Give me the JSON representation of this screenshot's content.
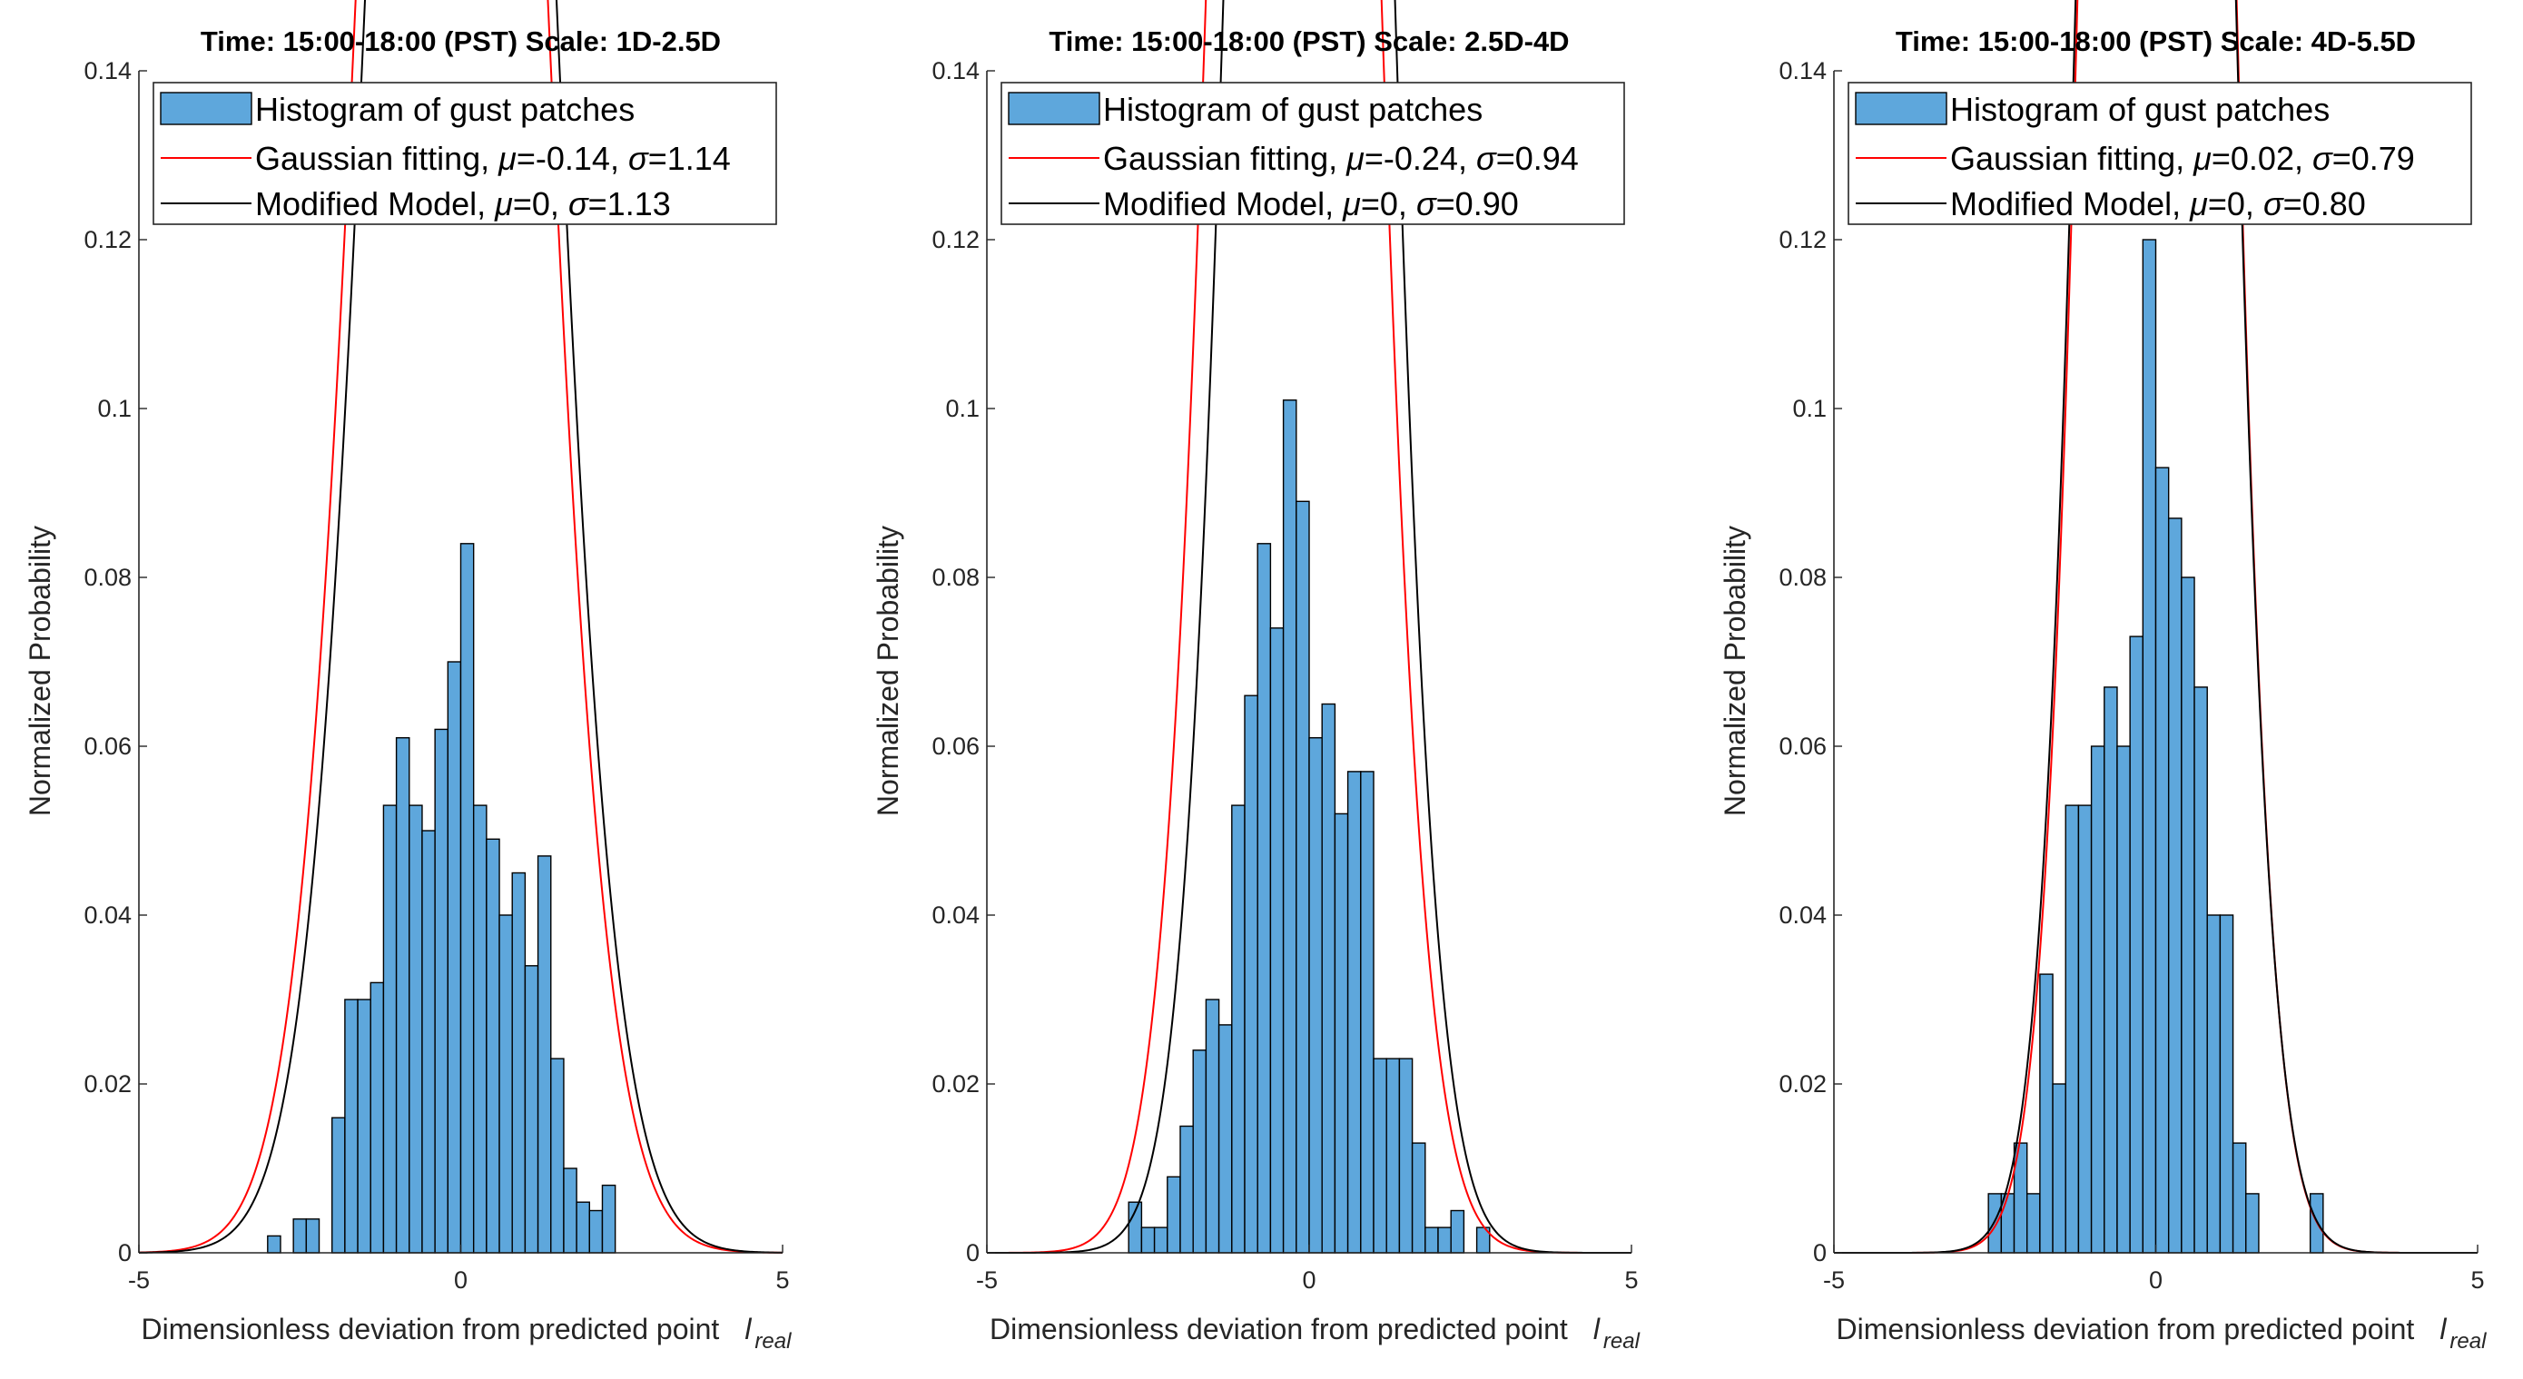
{
  "colors": {
    "bar_fill": "#5ea7dc",
    "bar_edge": "#000000",
    "gaussian": "#ff0000",
    "model": "#000000",
    "axis": "#262626"
  },
  "chart_data": [
    {
      "type": "bar",
      "title": "Time: 15:00-18:00 (PST)  Scale: 1D-2.5D",
      "xlabel": "Dimensionless deviation from predicted point",
      "xlabel_symbol": "l",
      "xlabel_subscript": "real",
      "ylabel": "Normalized Probability",
      "xlim": [
        -5,
        5
      ],
      "ylim": [
        0,
        0.14
      ],
      "xticks": [
        -5,
        0,
        5
      ],
      "xtick_labels": [
        "-5",
        "0",
        "5"
      ],
      "yticks": [
        0,
        0.02,
        0.04,
        0.06,
        0.08,
        0.1,
        0.12,
        0.14
      ],
      "ytick_labels": [
        "0",
        "0.02",
        "0.04",
        "0.06",
        "0.08",
        "0.1",
        "0.12",
        "0.14"
      ],
      "bin_width": 0.2,
      "bin_starts": [
        -3.0,
        -2.8,
        -2.6,
        -2.4,
        -2.2,
        -2.0,
        -1.8,
        -1.6,
        -1.4,
        -1.2,
        -1.0,
        -0.8,
        -0.6,
        -0.4,
        -0.2,
        0.0,
        0.2,
        0.4,
        0.6,
        0.8,
        1.0,
        1.2,
        1.4,
        1.6,
        1.8,
        2.0,
        2.2,
        2.4
      ],
      "bin_values": [
        0.002,
        0.0,
        0.004,
        0.004,
        0.0,
        0.016,
        0.03,
        0.03,
        0.032,
        0.053,
        0.061,
        0.053,
        0.05,
        0.062,
        0.07,
        0.084,
        0.053,
        0.049,
        0.04,
        0.045,
        0.034,
        0.047,
        0.023,
        0.01,
        0.006,
        0.005,
        0.008,
        0.0
      ],
      "legend": {
        "position": "top",
        "histogram_label": "Histogram of gust patches",
        "gaussian_prefix": "Gaussian fitting, ",
        "model_prefix": "Modified Model, ",
        "mu_symbol": "μ",
        "sigma_symbol": "σ",
        "gaussian_mu_text": "=-0.14, ",
        "gaussian_sigma_text": "=1.14",
        "model_mu_text": "=0, ",
        "model_sigma_text": "=1.13"
      },
      "gaussian_fit": {
        "mu": -0.14,
        "sigma": 1.14
      },
      "modified_model": {
        "mu": 0,
        "sigma": 1.13
      }
    },
    {
      "type": "bar",
      "title": "Time: 15:00-18:00 (PST)    Scale: 2.5D-4D",
      "xlabel": "Dimensionless deviation from predicted point",
      "xlabel_symbol": "l",
      "xlabel_subscript": "real",
      "ylabel": "Normalized Probability",
      "xlim": [
        -5,
        5
      ],
      "ylim": [
        0,
        0.14
      ],
      "xticks": [
        -5,
        0,
        5
      ],
      "xtick_labels": [
        "-5",
        "0",
        "5"
      ],
      "yticks": [
        0,
        0.02,
        0.04,
        0.06,
        0.08,
        0.1,
        0.12,
        0.14
      ],
      "ytick_labels": [
        "0",
        "0.02",
        "0.04",
        "0.06",
        "0.08",
        "0.1",
        "0.12",
        "0.14"
      ],
      "bin_width": 0.2,
      "bin_starts": [
        -2.8,
        -2.6,
        -2.4,
        -2.2,
        -2.0,
        -1.8,
        -1.6,
        -1.4,
        -1.2,
        -1.0,
        -0.8,
        -0.6,
        -0.4,
        -0.2,
        0.0,
        0.2,
        0.4,
        0.6,
        0.8,
        1.0,
        1.2,
        1.4,
        1.6,
        1.8,
        2.0,
        2.2,
        2.4,
        2.6,
        2.8
      ],
      "bin_values": [
        0.006,
        0.003,
        0.003,
        0.009,
        0.015,
        0.024,
        0.03,
        0.027,
        0.053,
        0.066,
        0.084,
        0.074,
        0.101,
        0.089,
        0.061,
        0.065,
        0.052,
        0.057,
        0.057,
        0.023,
        0.023,
        0.023,
        0.013,
        0.003,
        0.003,
        0.005,
        0.0,
        0.003,
        0.0
      ],
      "legend": {
        "position": "top",
        "histogram_label": "Histogram of gust patches",
        "gaussian_prefix": "Gaussian fitting, ",
        "model_prefix": "Modified Model, ",
        "mu_symbol": "μ",
        "sigma_symbol": "σ",
        "gaussian_mu_text": "=-0.24, ",
        "gaussian_sigma_text": "=0.94",
        "model_mu_text": "=0, ",
        "model_sigma_text": "=0.90"
      },
      "gaussian_fit": {
        "mu": -0.24,
        "sigma": 0.94
      },
      "modified_model": {
        "mu": 0,
        "sigma": 0.9
      }
    },
    {
      "type": "bar",
      "title": "Time: 15:00-18:00 (PST)    Scale: 4D-5.5D",
      "xlabel": "Dimensionless deviation from predicted point",
      "xlabel_symbol": "l",
      "xlabel_subscript": "real",
      "ylabel": "Normalized Probability",
      "xlim": [
        -5,
        5
      ],
      "ylim": [
        0,
        0.14
      ],
      "xticks": [
        -5,
        0,
        5
      ],
      "xtick_labels": [
        "-5",
        "0",
        "5"
      ],
      "yticks": [
        0,
        0.02,
        0.04,
        0.06,
        0.08,
        0.1,
        0.12,
        0.14
      ],
      "ytick_labels": [
        "0",
        "0.02",
        "0.04",
        "0.06",
        "0.08",
        "0.1",
        "0.12",
        "0.14"
      ],
      "bin_width": 0.2,
      "bin_starts": [
        -2.6,
        -2.4,
        -2.2,
        -2.0,
        -1.8,
        -1.6,
        -1.4,
        -1.2,
        -1.0,
        -0.8,
        -0.6,
        -0.4,
        -0.2,
        0.0,
        0.2,
        0.4,
        0.6,
        0.8,
        1.0,
        1.2,
        1.4,
        1.6,
        1.8,
        2.0,
        2.2,
        2.4
      ],
      "bin_values": [
        0.007,
        0.007,
        0.013,
        0.007,
        0.033,
        0.02,
        0.053,
        0.053,
        0.06,
        0.067,
        0.06,
        0.073,
        0.12,
        0.093,
        0.087,
        0.08,
        0.067,
        0.04,
        0.04,
        0.013,
        0.007,
        0.0,
        0.0,
        0.0,
        0.0,
        0.007
      ],
      "legend": {
        "position": "top",
        "histogram_label": "Histogram of gust patches",
        "gaussian_prefix": "Gaussian fitting, ",
        "model_prefix": "Modified Model, ",
        "mu_symbol": "μ",
        "sigma_symbol": "σ",
        "gaussian_mu_text": "=0.02, ",
        "gaussian_sigma_text": "=0.79",
        "model_mu_text": "=0, ",
        "model_sigma_text": "=0.80"
      },
      "gaussian_fit": {
        "mu": 0.02,
        "sigma": 0.79
      },
      "modified_model": {
        "mu": 0,
        "sigma": 0.8
      }
    }
  ]
}
